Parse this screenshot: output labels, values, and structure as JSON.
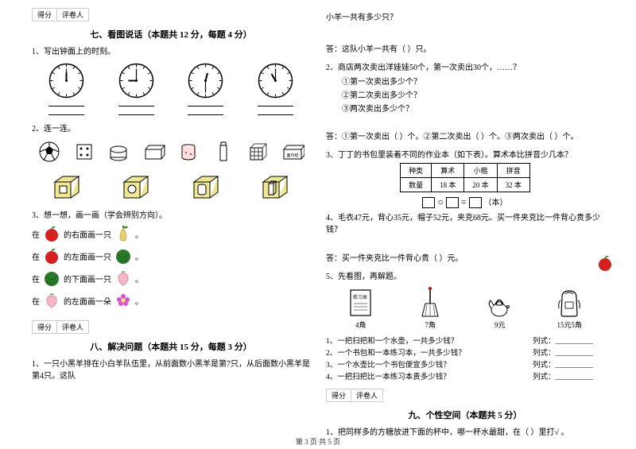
{
  "score_labels": {
    "score": "得分",
    "grader": "评卷人"
  },
  "sec7": {
    "title": "七、看图说话（本题共 12 分，每题 4 分）",
    "q1": "1、写出钟面上的时刻。",
    "q2": "2、连一连。",
    "q3": "3、想一想，画一画（学会辨别方向）。",
    "q3_lines": {
      "a": {
        "pre": "在",
        "mid": "的右面画一只"
      },
      "b": {
        "pre": "在",
        "mid": "的左面画一只"
      },
      "c": {
        "pre": "在",
        "mid": "的下面画一只"
      },
      "d": {
        "pre": "在",
        "mid": "的左面画一朵"
      }
    }
  },
  "sec8": {
    "title": "八、解决问题（本题共 15 分，每题 3 分）",
    "q1": "1、一只小黑羊排在小白羊队伍里，从前面数小黑羊是第7只，从后面数小黑羊是第4只。这队",
    "q1_cont": "小羊一共有多少只？",
    "a1": "答：这队小羊一共有（   ）只。",
    "q2": "2、商店两次卖出洋娃娃50个，第一次卖出30个，……？",
    "q2_opts": [
      "①第一次卖出多少个？",
      "②第二次卖出多少个？",
      "③两次卖出多少个？"
    ],
    "a2": "答：①第一次卖出（  ）个。②第二次卖出（  ）个。③两次卖出（  ）个。",
    "q3": "3、丁丁的书包里装着不同的作业本（如下表）。算术本比拼音少几本？",
    "table": {
      "headers": [
        "种类",
        "算术",
        "小楷",
        "拼音"
      ],
      "row_label": "数量",
      "values": [
        "18 本",
        "20 本",
        "32 本"
      ]
    },
    "eq_unit": "（本）",
    "q4": "4、毛衣47元，背心35元，帽子52元，夹克68元。买一件夹克比一件背心贵多少钱？",
    "a4": "答：买一件夹克比一件背心贵（   ）元。",
    "q5": "5、先看图，再解题。",
    "items": [
      {
        "name": "练习本",
        "price": "4角"
      },
      {
        "name": "扫把",
        "price": "7角"
      },
      {
        "name": "水壶",
        "price": "9元"
      },
      {
        "name": "书包",
        "price": "15元5角"
      }
    ],
    "calcs": [
      {
        "l": "1、一把扫把和一个水壶，一共多少钱？",
        "r": "列式：__________"
      },
      {
        "l": "2、一个书包和一本练习本，一共多少钱？",
        "r": "列式：__________"
      },
      {
        "l": "3、一个水壶比一个书包便宜多少钱？",
        "r": "列式：__________"
      },
      {
        "l": "4、一把扫把比一本练习本贵多少钱？",
        "r": "列式：__________"
      }
    ]
  },
  "sec9": {
    "title": "九、个性空间（本题共 5 分）",
    "q1": "1、把同样多的方糖放进下面的杯中，哪一杯水最甜，在（  ）里打√ 。"
  },
  "page_num": "第 3 页 共 5 页",
  "clocks": [
    {
      "h": 12,
      "m": 0
    },
    {
      "h": 9,
      "m": 0
    },
    {
      "h": 12,
      "m": 30
    },
    {
      "h": 11,
      "m": 0
    }
  ],
  "colors": {
    "apple": "#d62020",
    "pear": "#e8d070",
    "melon": "#2a7a2a",
    "peach": "#f5b8c8",
    "flower": "#d850d8",
    "leaf": "#3a9a3a"
  }
}
